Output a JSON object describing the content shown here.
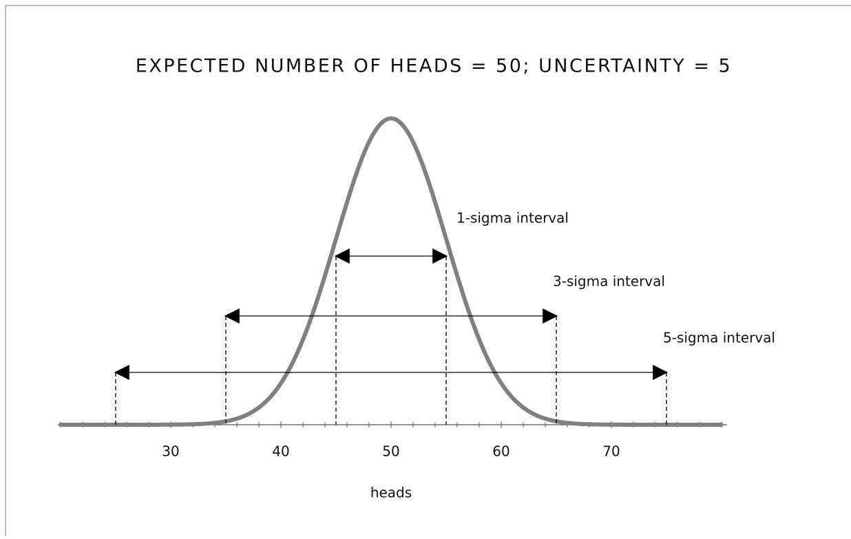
{
  "chart_data": {
    "type": "normal",
    "title": "EXPECTED NUMBER OF HEADS = 50; UNCERTAINTY = 5",
    "mean": 50,
    "sd": 5,
    "xlabel": "heads",
    "xlim": [
      20,
      80
    ],
    "xticks": [
      30,
      40,
      50,
      60,
      70
    ],
    "minor_tick_step": 2,
    "color": "#808080",
    "intervals": [
      {
        "label": "1-sigma interval",
        "from": 45,
        "to": 55
      },
      {
        "label": "3-sigma interval",
        "from": 35,
        "to": 65
      },
      {
        "label": "5-sigma interval",
        "from": 25,
        "to": 75
      }
    ]
  }
}
